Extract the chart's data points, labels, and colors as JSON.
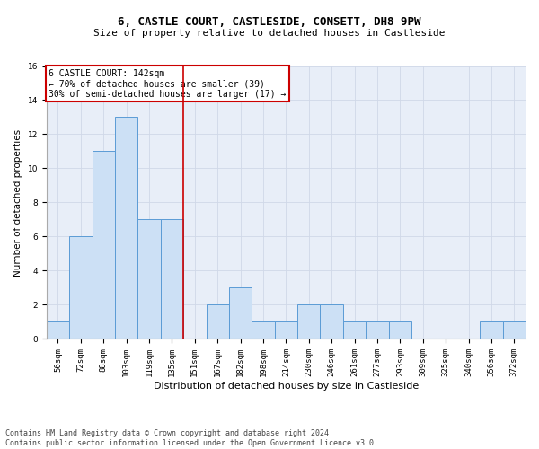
{
  "title_line1": "6, CASTLE COURT, CASTLESIDE, CONSETT, DH8 9PW",
  "title_line2": "Size of property relative to detached houses in Castleside",
  "xlabel": "Distribution of detached houses by size in Castleside",
  "ylabel": "Number of detached properties",
  "bin_labels": [
    "56sqm",
    "72sqm",
    "88sqm",
    "103sqm",
    "119sqm",
    "135sqm",
    "151sqm",
    "167sqm",
    "182sqm",
    "198sqm",
    "214sqm",
    "230sqm",
    "246sqm",
    "261sqm",
    "277sqm",
    "293sqm",
    "309sqm",
    "325sqm",
    "340sqm",
    "356sqm",
    "372sqm"
  ],
  "bar_values": [
    1,
    6,
    11,
    13,
    7,
    7,
    0,
    2,
    3,
    1,
    1,
    2,
    2,
    1,
    1,
    1,
    0,
    0,
    0,
    1,
    1
  ],
  "bar_color": "#cce0f5",
  "bar_edgecolor": "#5b9bd5",
  "vline_bin_index": 5.5,
  "annotation_title": "6 CASTLE COURT: 142sqm",
  "annotation_line1": "← 70% of detached houses are smaller (39)",
  "annotation_line2": "30% of semi-detached houses are larger (17) →",
  "annotation_box_color": "#ffffff",
  "annotation_box_edgecolor": "#cc0000",
  "vline_color": "#cc0000",
  "grid_color": "#d0d8e8",
  "background_color": "#e8eef8",
  "footer_line1": "Contains HM Land Registry data © Crown copyright and database right 2024.",
  "footer_line2": "Contains public sector information licensed under the Open Government Licence v3.0.",
  "ylim": [
    0,
    16
  ],
  "yticks": [
    0,
    2,
    4,
    6,
    8,
    10,
    12,
    14,
    16
  ],
  "title_fontsize": 9,
  "subtitle_fontsize": 8,
  "ylabel_fontsize": 7.5,
  "xlabel_fontsize": 8,
  "tick_fontsize": 6.5,
  "annot_fontsize": 7,
  "footer_fontsize": 6
}
